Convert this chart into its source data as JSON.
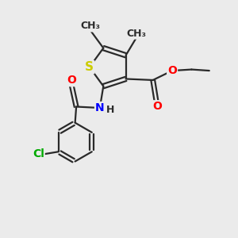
{
  "bg_color": "#ebebeb",
  "atom_colors": {
    "S": "#cccc00",
    "N": "#0000ff",
    "O": "#ff0000",
    "Cl": "#00aa00",
    "C": "#2a2a2a",
    "H": "#2a2a2a"
  },
  "bond_color": "#2a2a2a",
  "font_size": 10,
  "fig_size": [
    3.0,
    3.0
  ],
  "dpi": 100
}
